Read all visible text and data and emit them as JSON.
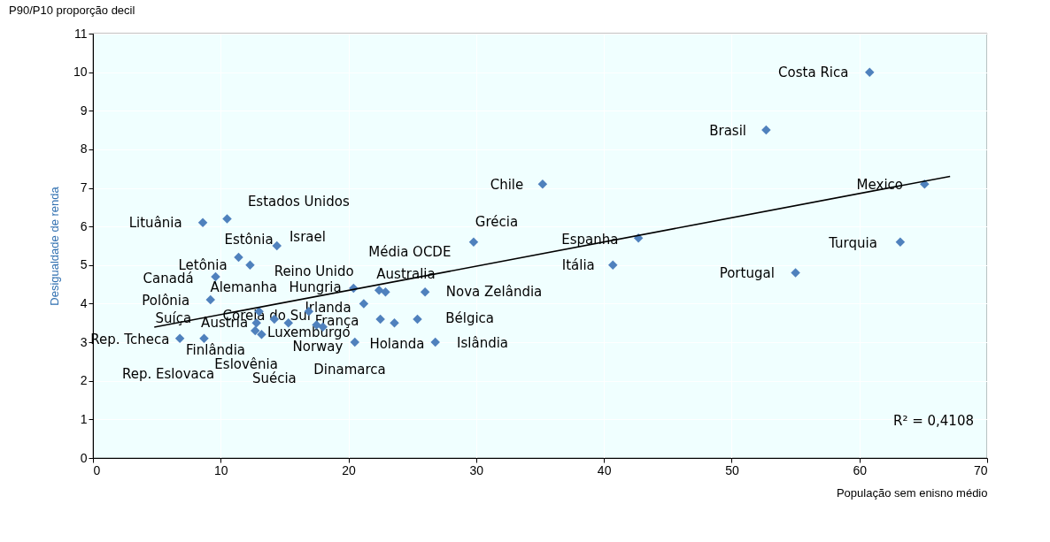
{
  "chart_data": {
    "type": "scatter",
    "title": "P90/P10 proporção decil",
    "xlabel": "População sem enisno médio",
    "ylabel": "Desigualdade de renda",
    "xlim": [
      0,
      70
    ],
    "ylim": [
      0,
      11
    ],
    "xticks": [
      0,
      10,
      20,
      30,
      40,
      50,
      60,
      70
    ],
    "yticks": [
      0,
      1,
      2,
      3,
      4,
      5,
      6,
      7,
      8,
      9,
      10,
      11
    ],
    "grid": true,
    "marker": "diamond",
    "series": [
      {
        "color": "#4f81bd",
        "x": [
          60.8,
          52.7,
          35.2,
          65.1,
          63.2,
          42.7,
          40.7,
          55.0,
          29.8,
          8.6,
          10.5,
          14.4,
          11.4,
          12.3,
          9.6,
          9.2,
          20.4,
          22.4,
          22.9,
          26.0,
          21.2,
          16.9,
          22.5,
          23.6,
          25.4,
          14.2,
          15.3,
          17.5,
          18.0,
          12.8,
          12.7,
          13.2,
          13.0,
          6.8,
          8.7,
          20.5,
          26.8
        ],
        "values": [
          10.0,
          8.5,
          7.1,
          7.1,
          5.6,
          5.7,
          5.0,
          4.8,
          5.6,
          6.1,
          6.2,
          5.5,
          5.2,
          5.0,
          4.7,
          4.1,
          4.4,
          4.35,
          4.3,
          4.3,
          4.0,
          3.8,
          3.6,
          3.5,
          3.6,
          3.6,
          3.5,
          3.45,
          3.4,
          3.5,
          3.3,
          3.2,
          3.8,
          3.1,
          3.1,
          3.0,
          3.0
        ]
      },
      {
        "type": "line",
        "color": "#000000",
        "marker": "none",
        "line_style": "solid",
        "x": [
          4.8,
          67.1
        ],
        "values": [
          3.39,
          7.3
        ]
      }
    ],
    "annotations": [
      "Costa Rica",
      "Brasil",
      "Chile",
      "Mexico",
      "Turquia",
      "Espanha",
      "Itália",
      "Portugal",
      "Grécia",
      "Média OCDE",
      "Lituânia",
      "Estados Unidos",
      "Israel",
      "Estônia",
      "Letônia",
      "Canadá",
      "Polônia",
      "Reino Unido",
      "Australia",
      "Nova Zelândia",
      "Alemanha",
      "Hungria",
      "Irlanda",
      "Coreia do Sul",
      "França",
      "Bélgica",
      "Suíça",
      "Austria",
      "Finlândia",
      "Rep. Tcheca",
      "Luxemburgo",
      "Norway",
      "Holanda",
      "Islândia",
      "Eslovênia",
      "Rep. Eslovaca",
      "Suécia",
      "Dinamarca",
      "R² = 0,4108"
    ]
  }
}
